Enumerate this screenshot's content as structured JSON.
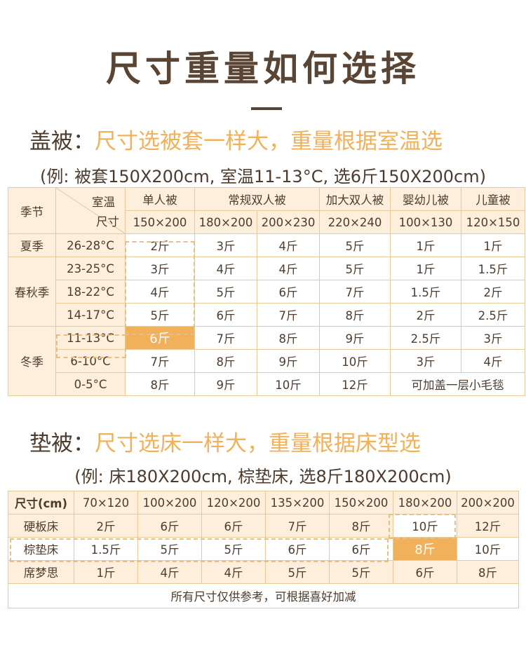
{
  "title": "尺寸重量如何选择",
  "quilt": {
    "heading_lead": "盖被：",
    "heading_hl": "尺寸选被套一样大，重量根据室温选",
    "example": "(例: 被套150X200cm, 室温11-13°C, 选6斤150X200cm)",
    "corner_season": "季节",
    "corner_temp": "室温",
    "corner_size": "尺寸",
    "types": [
      "单人被",
      "常规双人被",
      "加大双人被",
      "婴幼儿被",
      "儿童被"
    ],
    "sizes": [
      "150×200",
      "180×200",
      "200×230",
      "220×240",
      "100×130",
      "120×150"
    ],
    "seasons": [
      "夏季",
      "春秋季",
      "冬季"
    ],
    "rows": [
      {
        "temp": "26-28°C",
        "cells": [
          "2斤",
          "3斤",
          "4斤",
          "5斤",
          "1斤",
          "1斤"
        ]
      },
      {
        "temp": "23-25°C",
        "cells": [
          "3斤",
          "4斤",
          "4斤",
          "5斤",
          "1斤",
          "1.5斤"
        ]
      },
      {
        "temp": "18-22°C",
        "cells": [
          "4斤",
          "5斤",
          "6斤",
          "7斤",
          "1.5斤",
          "2斤"
        ]
      },
      {
        "temp": "14-17°C",
        "cells": [
          "5斤",
          "6斤",
          "7斤",
          "8斤",
          "2斤",
          "2.5斤"
        ]
      },
      {
        "temp": "11-13°C",
        "cells": [
          "6斤",
          "7斤",
          "8斤",
          "9斤",
          "2.5斤",
          "3斤"
        ]
      },
      {
        "temp": "6-10°C",
        "cells": [
          "7斤",
          "8斤",
          "9斤",
          "10斤",
          "3斤",
          "4斤"
        ]
      },
      {
        "temp": "0-5°C",
        "cells": [
          "8斤",
          "9斤",
          "10斤",
          "12斤"
        ],
        "note": "可加盖一层小毛毯"
      }
    ]
  },
  "mattress": {
    "heading_lead": "垫被：",
    "heading_hl": "尺寸选床一样大，重量根据床型选",
    "example": "(例: 床180X200cm, 棕垫床, 选8斤180X200cm)",
    "size_label": "尺寸(cm)",
    "sizes": [
      "70×120",
      "100×200",
      "120×200",
      "135×200",
      "150×200",
      "180×200",
      "200×200"
    ],
    "rows": [
      {
        "bed": "硬板床",
        "cells": [
          "2斤",
          "6斤",
          "6斤",
          "7斤",
          "8斤",
          "10斤",
          "12斤"
        ]
      },
      {
        "bed": "棕垫床",
        "cells": [
          "1.5斤",
          "5斤",
          "5斤",
          "6斤",
          "6斤",
          "8斤",
          "10斤"
        ]
      },
      {
        "bed": "席梦思",
        "cells": [
          "1斤",
          "4斤",
          "4斤",
          "5斤",
          "5斤",
          "6斤",
          "8斤"
        ]
      }
    ],
    "footnote": "所有尺寸仅供参考，可根据喜好加减"
  },
  "colors": {
    "accent": "#f0b15a",
    "text": "#4d3b2e",
    "cell_beige": "#fdefdc",
    "border": "#e7c99a"
  }
}
